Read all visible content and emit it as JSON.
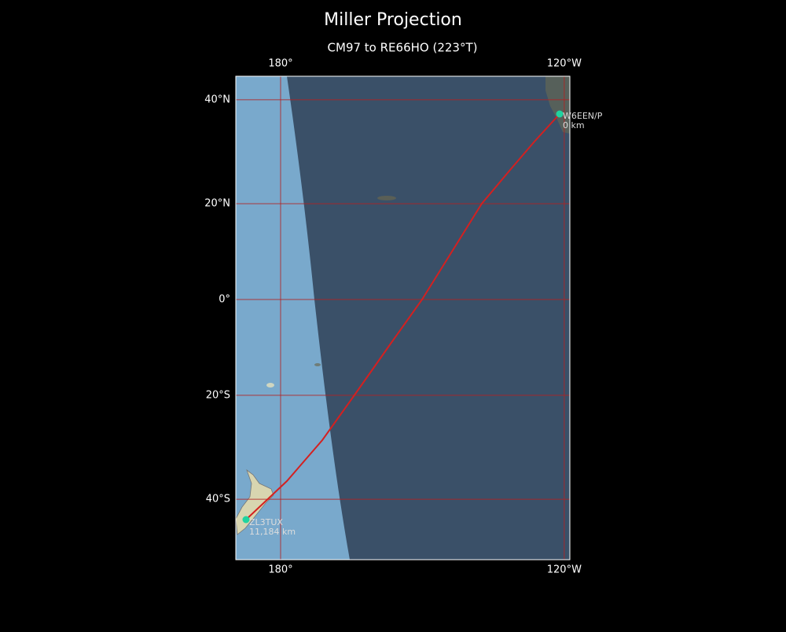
{
  "header": {
    "title": "Miller Projection",
    "subtitle": "CM97 to RE66HO (223°T)"
  },
  "graticule": {
    "longitudes": [
      {
        "value": 180,
        "label": "180°"
      },
      {
        "value": 240,
        "label": "120°W"
      }
    ],
    "latitudes": [
      {
        "value": 40,
        "label": "40°N"
      },
      {
        "value": 20,
        "label": "20°N"
      },
      {
        "value": 0,
        "label": "0°"
      },
      {
        "value": -20,
        "label": "20°S"
      },
      {
        "value": -40,
        "label": "40°S"
      }
    ]
  },
  "stations": [
    {
      "call": "W6EEN/P",
      "distance": "0 km"
    },
    {
      "call": "ZL3TUX",
      "distance": "11,184 km"
    }
  ]
}
